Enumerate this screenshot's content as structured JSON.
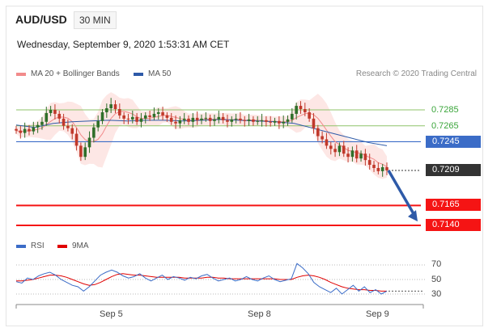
{
  "header": {
    "symbol": "AUD/USD",
    "timeframe": "30 MIN",
    "datetime": "Wednesday, September 9, 2020 1:53:31 AM CET"
  },
  "legend": {
    "ma20_bb": "MA 20 + Bollinger Bands",
    "ma50": "MA 50",
    "research": "Research © 2020 Trading Central",
    "rsi": "RSI",
    "rsi_9ma": "9MA"
  },
  "colors": {
    "ma20": "#f28b8b",
    "ma50": "#2e5aa8",
    "bb_fill": "#fde3e1",
    "candle_up": "#2f6f2a",
    "candle_down": "#c0392b",
    "support": "#f51414",
    "pivot": "#3b6cc7",
    "resistance": "#8fc36a",
    "last": "#333333",
    "arrow": "#2e5aa8"
  },
  "levels": {
    "r2": "0.7285",
    "r1": "0.7265",
    "pivot": "0.7245",
    "last": "0.7209",
    "s1": "0.7165",
    "s2": "0.7140"
  },
  "rsi_axis": [
    "70",
    "50",
    "30"
  ],
  "x_axis": [
    "Sep 5",
    "Sep 8",
    "Sep 9"
  ],
  "chart_data": [
    {
      "type": "candlestick",
      "title": "AUD/USD 30 MIN",
      "ylim": [
        0.713,
        0.73
      ],
      "x_ticks": [
        "Sep 5",
        "Sep 8",
        "Sep 9"
      ],
      "price_closes": [
        0.7259,
        0.7256,
        0.7261,
        0.7258,
        0.7263,
        0.7266,
        0.727,
        0.7281,
        0.7285,
        0.728,
        0.7274,
        0.7265,
        0.7262,
        0.7255,
        0.724,
        0.7226,
        0.7238,
        0.725,
        0.7263,
        0.7271,
        0.7282,
        0.7287,
        0.7292,
        0.7286,
        0.7278,
        0.7274,
        0.7273,
        0.7276,
        0.727,
        0.7274,
        0.7278,
        0.7276,
        0.728,
        0.7282,
        0.7278,
        0.7275,
        0.727,
        0.7268,
        0.7272,
        0.7274,
        0.727,
        0.7275,
        0.7272,
        0.7274,
        0.7275,
        0.7271,
        0.7273,
        0.7276,
        0.7272,
        0.727,
        0.7273,
        0.7274,
        0.7272,
        0.7271,
        0.7273,
        0.727,
        0.7271,
        0.7272,
        0.727,
        0.7269,
        0.7271,
        0.7268,
        0.727,
        0.7273,
        0.728,
        0.729,
        0.7286,
        0.7282,
        0.7274,
        0.7262,
        0.7252,
        0.7248,
        0.724,
        0.7236,
        0.7232,
        0.724,
        0.723,
        0.7226,
        0.7234,
        0.7224,
        0.723,
        0.7222,
        0.7216,
        0.7212,
        0.7208,
        0.7213,
        0.7209
      ],
      "ma50": [
        0.7266,
        0.7263,
        0.7268,
        0.727,
        0.7271,
        0.7272,
        0.7271,
        0.7272,
        0.7272,
        0.7271,
        0.7272,
        0.7273,
        0.7272,
        0.7271,
        0.727,
        0.7268,
        0.7262,
        0.7256,
        0.725,
        0.7244,
        0.724
      ],
      "levels": {
        "r2": 0.7285,
        "r1": 0.7265,
        "pivot": 0.7245,
        "last": 0.7209,
        "s1": 0.7165,
        "s2": 0.714
      }
    },
    {
      "type": "line",
      "title": "RSI",
      "ylim": [
        20,
        80
      ],
      "y_ticks": [
        70,
        50,
        30
      ],
      "series": [
        {
          "name": "RSI",
          "values": [
            47,
            45,
            52,
            50,
            55,
            58,
            60,
            56,
            50,
            46,
            42,
            40,
            34,
            40,
            48,
            56,
            60,
            63,
            60,
            55,
            52,
            54,
            58,
            52,
            48,
            52,
            56,
            50,
            54,
            52,
            49,
            53,
            51,
            55,
            57,
            52,
            48,
            50,
            52,
            48,
            50,
            54,
            50,
            48,
            52,
            55,
            50,
            47,
            49,
            51,
            72,
            66,
            58,
            46,
            40,
            36,
            32,
            38,
            30,
            36,
            42,
            34,
            40,
            32,
            36,
            30,
            34
          ]
        },
        {
          "name": "9MA",
          "values": [
            48,
            48,
            49,
            50,
            52,
            54,
            56,
            56,
            55,
            53,
            50,
            47,
            44,
            42,
            43,
            46,
            50,
            54,
            57,
            58,
            57,
            56,
            56,
            55,
            54,
            53,
            53,
            53,
            53,
            53,
            52,
            52,
            52,
            52,
            53,
            53,
            52,
            52,
            51,
            51,
            51,
            51,
            51,
            51,
            51,
            51,
            51,
            50,
            50,
            50,
            53,
            55,
            56,
            55,
            53,
            50,
            46,
            43,
            40,
            38,
            37,
            36,
            36,
            35,
            35,
            34,
            34
          ]
        }
      ]
    }
  ]
}
